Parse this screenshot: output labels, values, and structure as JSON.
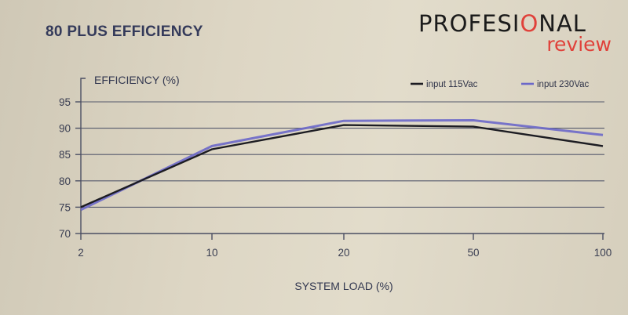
{
  "title": "80 PLUS EFFICIENCY",
  "watermark": {
    "brand_main": "PROFESI",
    "brand_accent": "O",
    "brand_end": "NAL",
    "brand_sub": "review"
  },
  "colors": {
    "series_115": "#1c1c22",
    "series_230": "#6b68c9",
    "grid": "#55596c"
  },
  "chart_data": {
    "type": "line",
    "title": "80 PLUS EFFICIENCY",
    "ylabel": "EFFICIENCY (%)",
    "xlabel": "SYSTEM LOAD (%)",
    "x": [
      2,
      10,
      20,
      50,
      100
    ],
    "x_scale": "categorical-log",
    "ylim": [
      70,
      95
    ],
    "yticks": [
      70,
      75,
      80,
      85,
      90,
      95
    ],
    "grid": true,
    "legend": "top-right",
    "series": [
      {
        "name": "input 115Vac",
        "values": [
          75,
          86,
          90.6,
          90.3,
          86.6
        ]
      },
      {
        "name": "input 230Vac",
        "values": [
          74.5,
          86.6,
          91.4,
          91.5,
          88.7
        ]
      }
    ]
  }
}
